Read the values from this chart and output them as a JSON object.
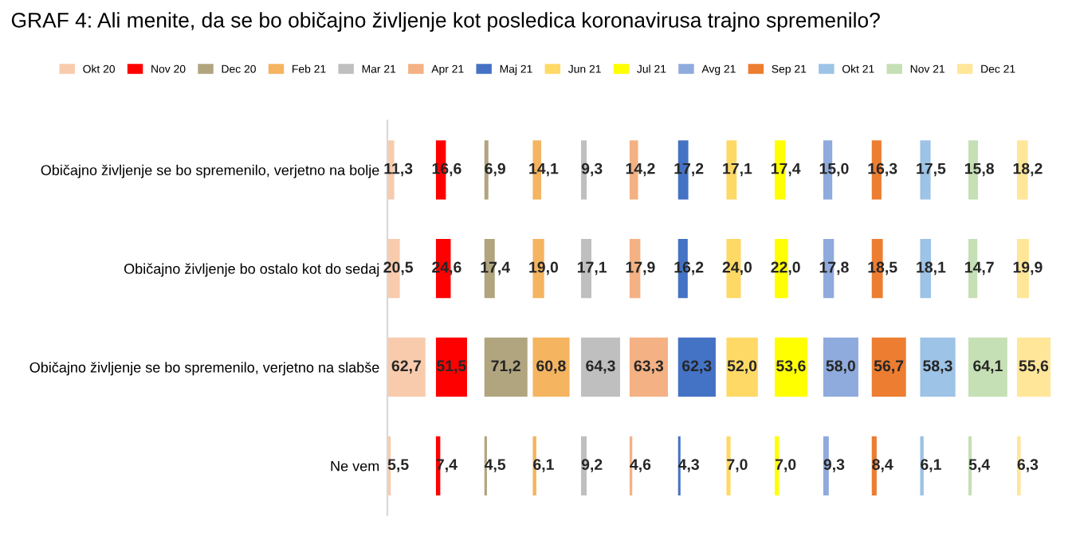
{
  "chart_data": [
    {
      "type": "bar",
      "orientation": "horizontal",
      "title": "GRAF 4: Ali menite, da se bo običajno življenje kot posledica koronavirusa trajno spremenilo?",
      "categories": [
        "Običajno življenje se bo spremenilo, verjetno na bolje",
        "Običajno življenje bo ostalo kot do sedaj",
        "Običajno življenje se bo spremenilo, verjetno na slabše",
        "Ne vem"
      ],
      "tick_labels": "y",
      "legend": "top",
      "series": [
        {
          "name": "Okt 20",
          "color": "#f8cbad",
          "values": [
            11.3,
            20.5,
            62.7,
            5.5
          ],
          "value_labels": [
            "11,3",
            "20,5",
            "62,7",
            "5,5"
          ]
        }
      ]
    },
    {
      "type": "bar",
      "orientation": "horizontal",
      "categories": [
        null,
        null,
        null,
        null
      ],
      "tick_labels": false,
      "legend": "top",
      "series": [
        {
          "name": "Nov 20",
          "color": "#ff0000",
          "values": [
            16.6,
            24.6,
            51.5,
            7.4
          ],
          "value_labels": [
            "16,6",
            "24,6",
            "51,5",
            "7,4"
          ]
        }
      ]
    },
    {
      "type": "bar",
      "orientation": "horizontal",
      "categories": [
        null,
        null,
        null,
        null
      ],
      "tick_labels": false,
      "legend": "top",
      "series": [
        {
          "name": "Dec 20",
          "color": "#b0a57f",
          "values": [
            6.9,
            17.4,
            71.2,
            4.5
          ],
          "value_labels": [
            "6,9",
            "17,4",
            "71,2",
            "4,5"
          ]
        }
      ]
    },
    {
      "type": "bar",
      "orientation": "horizontal",
      "categories": [
        null,
        null,
        null,
        null
      ],
      "tick_labels": false,
      "legend": "top",
      "series": [
        {
          "name": "Feb 21",
          "color": "#f4b460",
          "values": [
            14.1,
            19.0,
            60.8,
            6.1
          ],
          "value_labels": [
            "14,1",
            "19,0",
            "60,8",
            "6,1"
          ]
        }
      ]
    },
    {
      "type": "bar",
      "orientation": "horizontal",
      "categories": [
        null,
        null,
        null,
        null
      ],
      "tick_labels": false,
      "legend": "top",
      "series": [
        {
          "name": "Mar 21",
          "color": "#bfbfbf",
          "values": [
            9.3,
            17.1,
            64.3,
            9.2
          ],
          "value_labels": [
            "9,3",
            "17,1",
            "64,3",
            "9,2"
          ]
        }
      ]
    },
    {
      "type": "bar",
      "orientation": "horizontal",
      "categories": [
        null,
        null,
        null,
        null
      ],
      "tick_labels": false,
      "legend": "top",
      "series": [
        {
          "name": "Apr 21",
          "color": "#f4b183",
          "values": [
            14.2,
            17.9,
            63.3,
            4.6
          ],
          "value_labels": [
            "14,2",
            "17,9",
            "63,3",
            "4,6"
          ]
        }
      ]
    },
    {
      "type": "bar",
      "orientation": "horizontal",
      "categories": [
        null,
        null,
        null,
        null
      ],
      "tick_labels": false,
      "legend": "top",
      "series": [
        {
          "name": "Maj 21",
          "color": "#4472c4",
          "values": [
            17.2,
            16.2,
            62.3,
            4.3
          ],
          "value_labels": [
            "17,2",
            "16,2",
            "62,3",
            "4,3"
          ]
        }
      ]
    },
    {
      "type": "bar",
      "orientation": "horizontal",
      "categories": [
        null,
        null,
        null,
        null
      ],
      "tick_labels": false,
      "legend": "top",
      "series": [
        {
          "name": "Jun 21",
          "color": "#ffd966",
          "values": [
            17.1,
            24.0,
            52.0,
            7.0
          ],
          "value_labels": [
            "17,1",
            "24,0",
            "52,0",
            "7,0"
          ]
        }
      ]
    },
    {
      "type": "bar",
      "orientation": "horizontal",
      "categories": [
        null,
        null,
        null,
        null
      ],
      "tick_labels": false,
      "legend": "top",
      "series": [
        {
          "name": "Jul 21",
          "color": "#ffff00",
          "values": [
            17.4,
            22.0,
            53.6,
            7.0
          ],
          "value_labels": [
            "17,4",
            "22,0",
            "53,6",
            "7,0"
          ]
        }
      ]
    },
    {
      "type": "bar",
      "orientation": "horizontal",
      "categories": [
        null,
        null,
        null,
        null
      ],
      "tick_labels": false,
      "legend": "top",
      "series": [
        {
          "name": "Avg 21",
          "color": "#8faadc",
          "values": [
            15.0,
            17.8,
            58.0,
            9.3
          ],
          "value_labels": [
            "15,0",
            "17,8",
            "58,0",
            "9,3"
          ]
        }
      ]
    },
    {
      "type": "bar",
      "orientation": "horizontal",
      "categories": [
        null,
        null,
        null,
        null
      ],
      "tick_labels": false,
      "legend": "top",
      "series": [
        {
          "name": "Sep 21",
          "color": "#ed7d31",
          "values": [
            16.3,
            18.5,
            56.7,
            8.4
          ],
          "value_labels": [
            "16,3",
            "18,5",
            "56,7",
            "8,4"
          ]
        }
      ]
    },
    {
      "type": "bar",
      "orientation": "horizontal",
      "categories": [
        null,
        null,
        null,
        null
      ],
      "tick_labels": false,
      "legend": "top",
      "series": [
        {
          "name": "Okt 21",
          "color": "#9dc3e6",
          "values": [
            17.5,
            18.1,
            58.3,
            6.1
          ],
          "value_labels": [
            "17,5",
            "18,1",
            "58,3",
            "6,1"
          ]
        }
      ]
    },
    {
      "type": "bar",
      "orientation": "horizontal",
      "categories": [
        null,
        null,
        null,
        null
      ],
      "tick_labels": false,
      "legend": "top",
      "series": [
        {
          "name": "Nov 21",
          "color": "#c5e0b4",
          "values": [
            15.8,
            14.7,
            64.1,
            5.4
          ],
          "value_labels": [
            "15,8",
            "14,7",
            "64,1",
            "5,4"
          ]
        }
      ]
    },
    {
      "type": "bar",
      "orientation": "horizontal",
      "categories": [
        null,
        null,
        null,
        null
      ],
      "tick_labels": false,
      "legend": "top",
      "series": [
        {
          "name": "Dec 21",
          "color": "#ffe699",
          "values": [
            18.2,
            19.9,
            55.6,
            6.3
          ],
          "value_labels": [
            "18,2",
            "19,9",
            "55,6",
            "6,3"
          ]
        }
      ]
    }
  ]
}
